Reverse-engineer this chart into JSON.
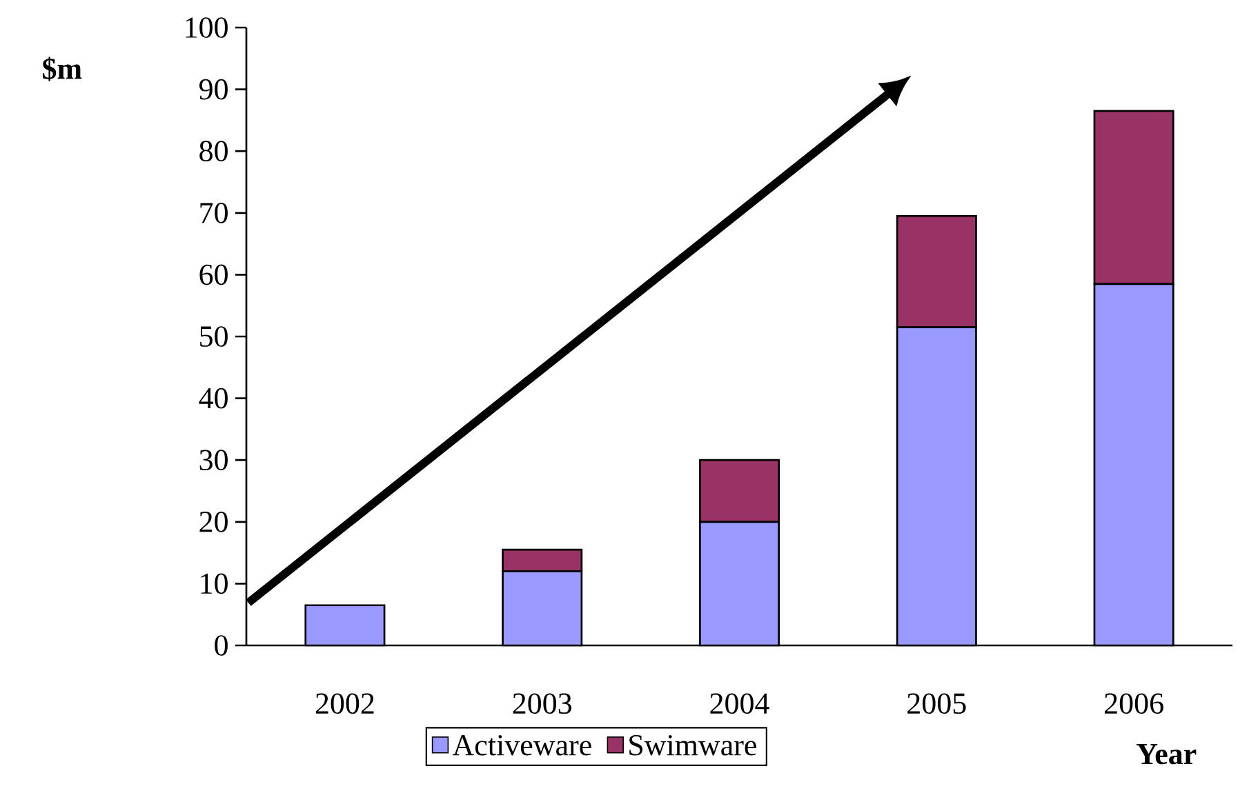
{
  "chart_data": {
    "type": "bar",
    "stacked": true,
    "ylabel": "$m",
    "xlabel": "Year",
    "categories": [
      "2002",
      "2003",
      "2004",
      "2005",
      "2006"
    ],
    "series": [
      {
        "name": "Activeware",
        "color": "#9999ff",
        "values": [
          6.5,
          12,
          20,
          51.5,
          58.5
        ]
      },
      {
        "name": "Swimware",
        "color": "#993366",
        "values": [
          0,
          3.5,
          10,
          18,
          28
        ]
      }
    ],
    "ylim": [
      0,
      100
    ],
    "yticks": [
      0,
      10,
      20,
      30,
      40,
      50,
      60,
      70,
      80,
      90,
      100
    ],
    "grid": false,
    "legend": "bottom"
  }
}
